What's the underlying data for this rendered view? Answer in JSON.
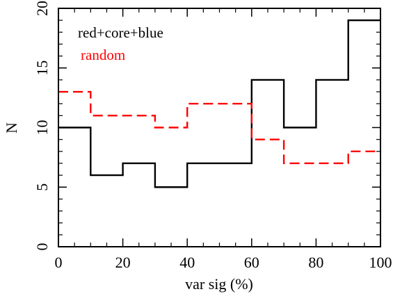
{
  "chart_data": {
    "type": "step",
    "title": "",
    "xlabel": "var sig (%)",
    "ylabel": "N",
    "xlim": [
      0,
      100
    ],
    "ylim": [
      0,
      20
    ],
    "x_ticks": [
      0,
      20,
      40,
      60,
      80,
      100
    ],
    "y_ticks": [
      0,
      5,
      10,
      15,
      20
    ],
    "bin_edges": [
      0,
      10,
      20,
      30,
      40,
      50,
      60,
      70,
      80,
      90,
      100
    ],
    "series": [
      {
        "name": "red+core+blue",
        "color": "#000000",
        "style": "solid",
        "values": [
          10,
          6,
          7,
          5,
          7,
          7,
          14,
          10,
          14,
          19
        ]
      },
      {
        "name": "random",
        "color": "#ff0000",
        "style": "dashed",
        "values": [
          13,
          11,
          11,
          10,
          12,
          12,
          9,
          7,
          7,
          8
        ]
      }
    ],
    "legend_position": "top-left",
    "grid": false
  }
}
